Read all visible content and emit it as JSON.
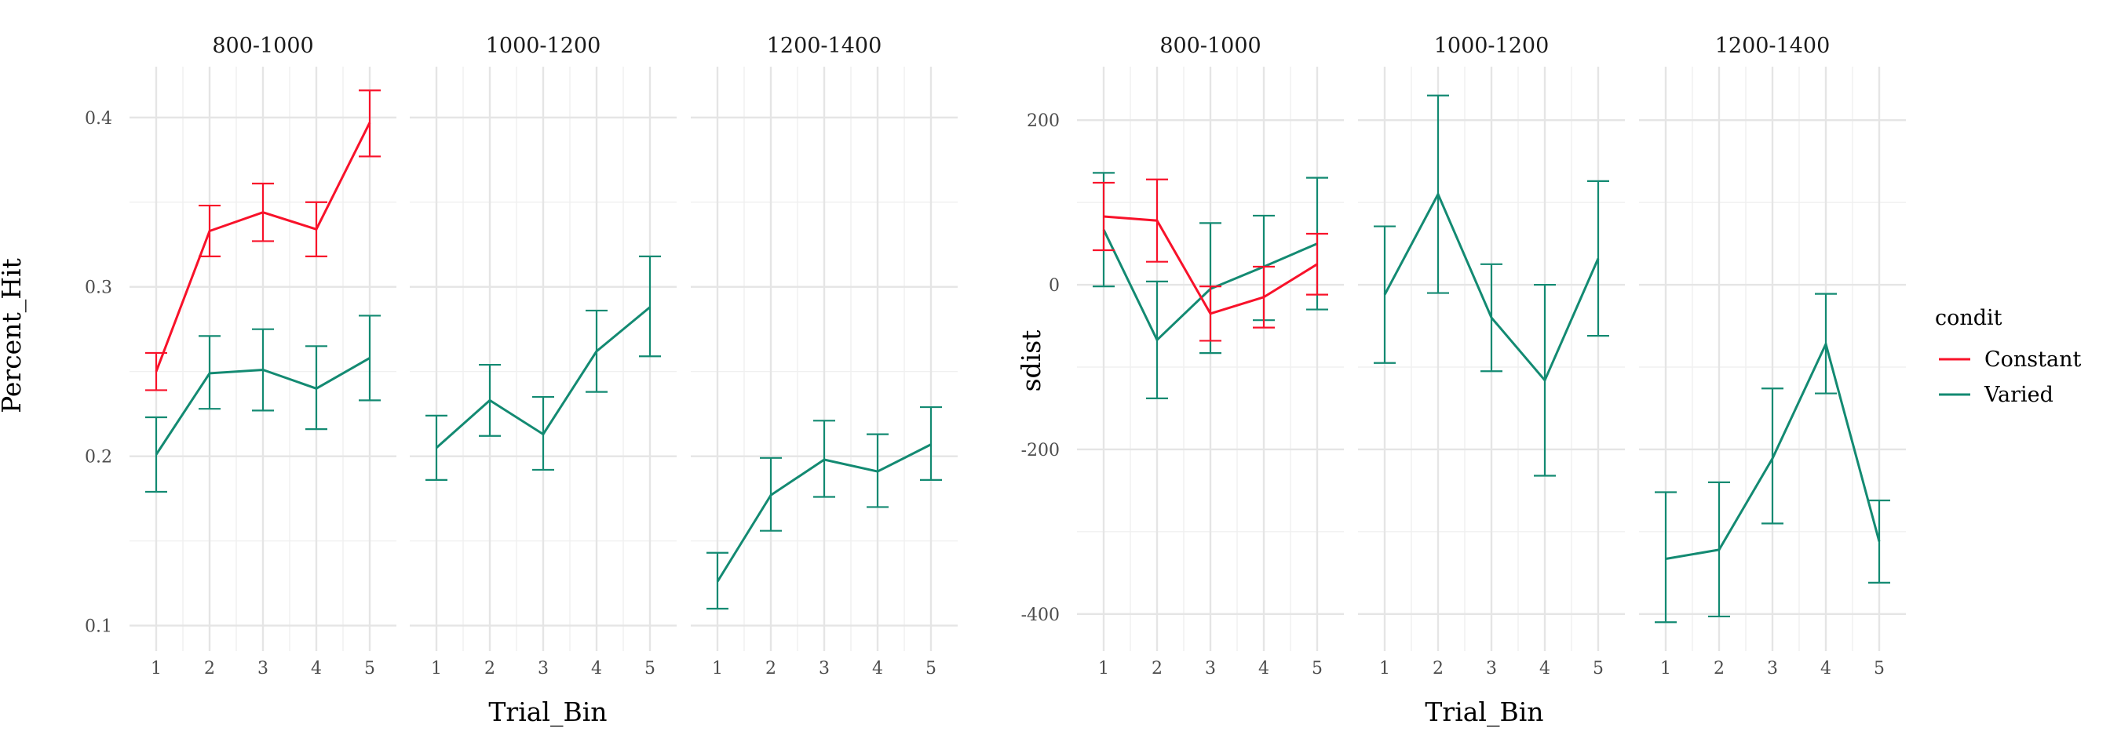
{
  "colors": {
    "Constant": "#f8122a",
    "Varied": "#138a72"
  },
  "legend": {
    "title": "condit",
    "items": [
      "Constant",
      "Varied"
    ]
  },
  "chart_data": [
    {
      "type": "line",
      "title": "",
      "xlabel": "Trial_Bin",
      "ylabel": "Percent_Hit",
      "ylim": [
        0.085,
        0.43
      ],
      "ybreaks": [
        0.1,
        0.2,
        0.3,
        0.4
      ],
      "ytick_labels": [
        "0.1",
        "0.2",
        "0.3",
        "0.4"
      ],
      "x": [
        1,
        2,
        3,
        4,
        5
      ],
      "xtick_labels": [
        "1",
        "2",
        "3",
        "4",
        "5"
      ],
      "facets": [
        {
          "label": "800-1000",
          "series": [
            {
              "name": "Constant",
              "values": [
                0.25,
                0.333,
                0.344,
                0.334,
                0.397
              ],
              "lower": [
                0.239,
                0.318,
                0.327,
                0.318,
                0.377
              ],
              "upper": [
                0.261,
                0.348,
                0.361,
                0.35,
                0.416
              ]
            },
            {
              "name": "Varied",
              "values": [
                0.201,
                0.249,
                0.251,
                0.24,
                0.258
              ],
              "lower": [
                0.179,
                0.228,
                0.227,
                0.216,
                0.233
              ],
              "upper": [
                0.223,
                0.271,
                0.275,
                0.265,
                0.283
              ]
            }
          ]
        },
        {
          "label": "1000-1200",
          "series": [
            {
              "name": "Varied",
              "values": [
                0.205,
                0.233,
                0.213,
                0.262,
                0.288
              ],
              "lower": [
                0.186,
                0.212,
                0.192,
                0.238,
                0.259
              ],
              "upper": [
                0.224,
                0.254,
                0.235,
                0.286,
                0.318
              ]
            }
          ]
        },
        {
          "label": "1200-1400",
          "series": [
            {
              "name": "Varied",
              "values": [
                0.126,
                0.177,
                0.198,
                0.191,
                0.207
              ],
              "lower": [
                0.11,
                0.156,
                0.176,
                0.17,
                0.186
              ],
              "upper": [
                0.143,
                0.199,
                0.221,
                0.213,
                0.229
              ]
            }
          ]
        }
      ]
    },
    {
      "type": "line",
      "title": "",
      "xlabel": "Trial_Bin",
      "ylabel": "sdist",
      "ylim": [
        -445,
        265
      ],
      "ybreaks": [
        -400,
        -200,
        0,
        200
      ],
      "ytick_labels": [
        "-400",
        "-200",
        "0",
        "200"
      ],
      "x": [
        1,
        2,
        3,
        4,
        5
      ],
      "xtick_labels": [
        "1",
        "2",
        "3",
        "4",
        "5"
      ],
      "facets": [
        {
          "label": "800-1000",
          "series": [
            {
              "name": "Constant",
              "values": [
                83,
                78,
                -35,
                -15,
                25
              ],
              "lower": [
                42,
                28,
                -68,
                -52,
                -12
              ],
              "upper": [
                124,
                128,
                -2,
                22,
                62
              ]
            },
            {
              "name": "Varied",
              "values": [
                67,
                -67,
                -5,
                22,
                50
              ],
              "lower": [
                -2,
                -138,
                -83,
                -43,
                -30
              ],
              "upper": [
                136,
                4,
                75,
                84,
                130
              ]
            }
          ]
        },
        {
          "label": "1000-1200",
          "series": [
            {
              "name": "Varied",
              "values": [
                -12,
                110,
                -40,
                -116,
                32
              ],
              "lower": [
                -95,
                -10,
                -105,
                -232,
                -62
              ],
              "upper": [
                71,
                230,
                25,
                0,
                126
              ]
            }
          ]
        },
        {
          "label": "1200-1400",
          "series": [
            {
              "name": "Varied",
              "values": [
                -333,
                -322,
                -211,
                -72,
                -312
              ],
              "lower": [
                -410,
                -403,
                -290,
                -132,
                -362
              ],
              "upper": [
                -252,
                -240,
                -126,
                -11,
                -262
              ]
            }
          ]
        }
      ]
    }
  ]
}
